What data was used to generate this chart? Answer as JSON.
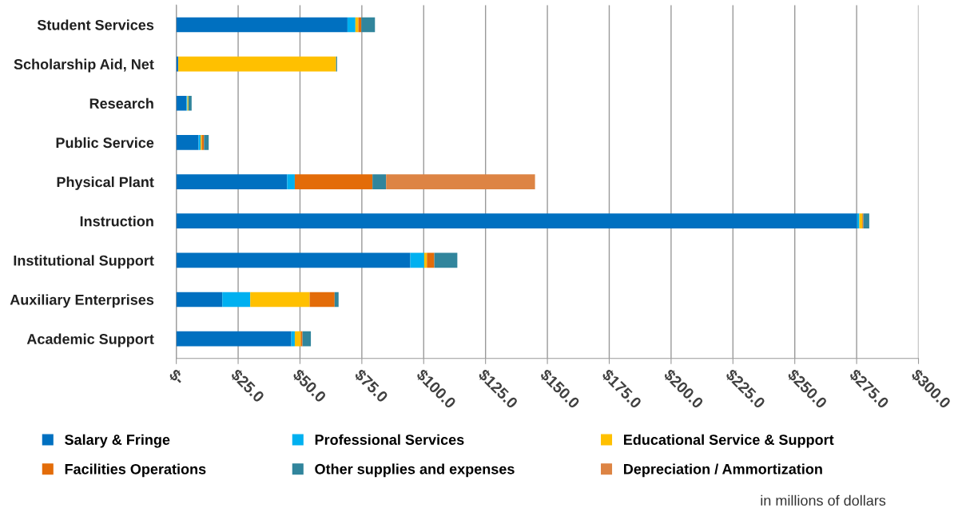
{
  "chart_data": {
    "type": "bar",
    "orientation": "horizontal",
    "stacked": true,
    "categories": [
      "Student Services",
      "Scholarship Aid, Net",
      "Research",
      "Public Service",
      "Physical Plant",
      "Instruction",
      "Institutional Support",
      "Auxiliary Enterprises",
      "Academic Support"
    ],
    "series": [
      {
        "name": "Salary & Fringe",
        "color": "#0070c0",
        "values": [
          69.2,
          0.8,
          4.1,
          9.0,
          44.8,
          275.2,
          94.6,
          18.6,
          46.5
        ]
      },
      {
        "name": "Professional Services",
        "color": "#00b0f0",
        "values": [
          3.2,
          null,
          0.4,
          0.8,
          3.1,
          0.9,
          5.6,
          11.3,
          1.4
        ]
      },
      {
        "name": "Educational Service & Support",
        "color": "#ffc000",
        "values": [
          1.2,
          63.8,
          0.4,
          0.5,
          null,
          1.2,
          1.1,
          24.0,
          2.4
        ]
      },
      {
        "name": "Facilities Operations",
        "color": "#e36c09",
        "values": [
          1.2,
          null,
          null,
          0.9,
          31.4,
          0.4,
          3.0,
          10.1,
          0.7
        ]
      },
      {
        "name": "Other supplies and expenses",
        "color": "#31859c",
        "values": [
          5.5,
          0.4,
          1.3,
          1.9,
          5.5,
          2.4,
          9.3,
          1.6,
          3.4
        ]
      },
      {
        "name": "Depreciation / Ammortization",
        "color": "#dd8444",
        "values": [
          null,
          null,
          null,
          null,
          60.2,
          null,
          null,
          null,
          null
        ]
      }
    ],
    "xlim": [
      0,
      300
    ],
    "xticks": [
      {
        "value": 0,
        "label": "$-"
      },
      {
        "value": 25,
        "label": "$25.0"
      },
      {
        "value": 50,
        "label": "$50.0"
      },
      {
        "value": 75,
        "label": "$75.0"
      },
      {
        "value": 100,
        "label": "$100.0"
      },
      {
        "value": 125,
        "label": "$125.0"
      },
      {
        "value": 150,
        "label": "$150.0"
      },
      {
        "value": 175,
        "label": "$175.0"
      },
      {
        "value": 200,
        "label": "$200.0"
      },
      {
        "value": 225,
        "label": "$225.0"
      },
      {
        "value": 250,
        "label": "$250.0"
      },
      {
        "value": 275,
        "label": "$275.0"
      },
      {
        "value": 300,
        "label": "$300.0"
      }
    ],
    "grid": "x",
    "legend": "bottom",
    "annotations": [
      "in millions of dollars"
    ]
  }
}
